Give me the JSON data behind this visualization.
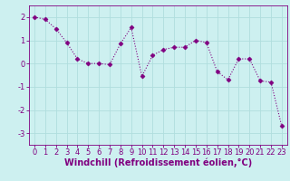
{
  "x": [
    0,
    1,
    2,
    3,
    4,
    5,
    6,
    7,
    8,
    9,
    10,
    11,
    12,
    13,
    14,
    15,
    16,
    17,
    18,
    19,
    20,
    21,
    22,
    23
  ],
  "y": [
    2.0,
    1.9,
    1.5,
    0.9,
    0.2,
    0.0,
    0.0,
    -0.05,
    0.85,
    1.55,
    -0.55,
    0.35,
    0.6,
    0.7,
    0.7,
    1.0,
    0.9,
    -0.35,
    -0.7,
    0.2,
    0.2,
    -0.75,
    -0.8,
    -2.7
  ],
  "line_color": "#800080",
  "marker": "D",
  "markersize": 2.5,
  "bg_color": "#cdf0f0",
  "grid_color": "#b0dede",
  "xlabel": "Windchill (Refroidissement éolien,°C)",
  "ylim": [
    -3.5,
    2.5
  ],
  "xlim": [
    -0.5,
    23.5
  ],
  "yticks": [
    -3,
    -2,
    -1,
    0,
    1,
    2
  ],
  "xticks": [
    0,
    1,
    2,
    3,
    4,
    5,
    6,
    7,
    8,
    9,
    10,
    11,
    12,
    13,
    14,
    15,
    16,
    17,
    18,
    19,
    20,
    21,
    22,
    23
  ],
  "tick_label_fontsize": 6,
  "xlabel_fontsize": 7,
  "axis_color": "#800080",
  "spine_color": "#800080",
  "linewidth": 0.8
}
